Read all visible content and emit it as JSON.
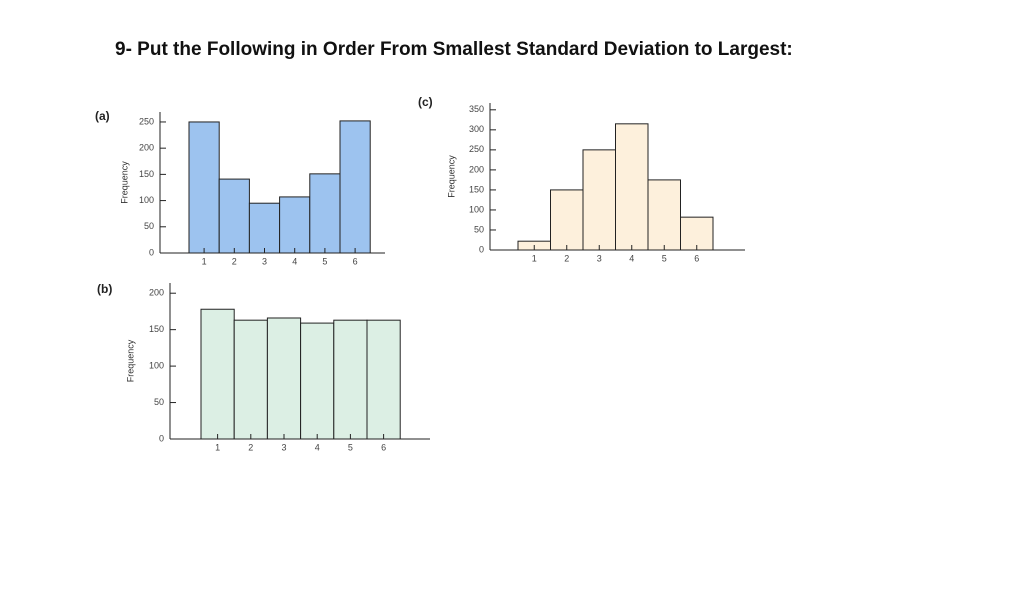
{
  "question": "9- Put the Following in Order From Smallest Standard Deviation to Largest:",
  "chart_data": [
    {
      "type": "bar",
      "label": "(a)",
      "ylabel": "Frequency",
      "color": "#9dc3ef",
      "categories": [
        "1",
        "2",
        "3",
        "4",
        "5",
        "6"
      ],
      "values": [
        250,
        141,
        95,
        107,
        151,
        252
      ],
      "ylim": [
        0,
        269
      ],
      "yticks": [
        0,
        50,
        100,
        150,
        200,
        250
      ]
    },
    {
      "type": "bar",
      "label": "(b)",
      "ylabel": "Frequency",
      "color": "#dcefe4",
      "categories": [
        "1",
        "2",
        "3",
        "4",
        "5",
        "6"
      ],
      "values": [
        178,
        163,
        166,
        159,
        163,
        163
      ],
      "ylim": [
        0,
        214
      ],
      "yticks": [
        0,
        50,
        100,
        150,
        200
      ]
    },
    {
      "type": "bar",
      "label": "(c)",
      "ylabel": "Frequency",
      "color": "#fdf0dc",
      "categories": [
        "1",
        "2",
        "3",
        "4",
        "5",
        "6"
      ],
      "values": [
        22,
        150,
        250,
        315,
        175,
        82
      ],
      "ylim": [
        0,
        367
      ],
      "yticks": [
        0,
        50,
        100,
        150,
        200,
        250,
        300,
        350
      ]
    }
  ]
}
